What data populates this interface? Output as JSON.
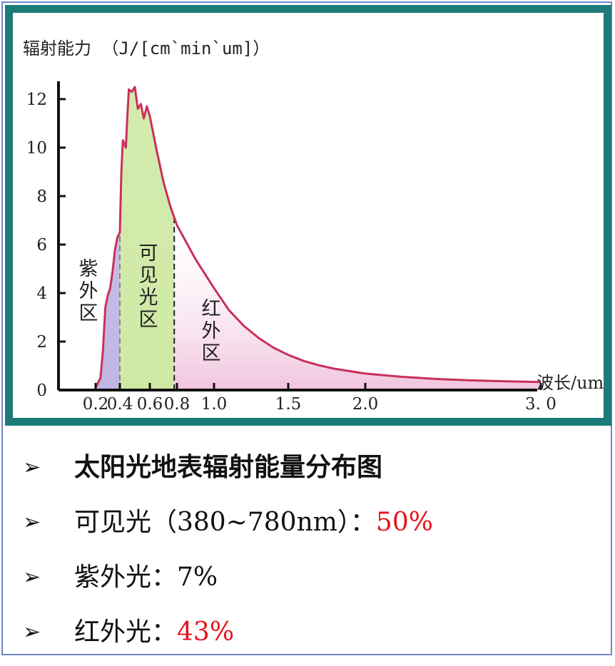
{
  "chart_data": {
    "type": "area",
    "ylabel": "辐射能力 （J/[cm`min`um]）",
    "xlabel": "波长/um",
    "xlim": [
      0,
      3.0
    ],
    "ylim": [
      0,
      12.5
    ],
    "x_ticks": [
      "0.2",
      "0.4",
      "0.6",
      "0.8",
      "1.0",
      "1.5",
      "2.0",
      "3.0"
    ],
    "y_ticks": [
      "0",
      "2",
      "4",
      "6",
      "8",
      "10",
      "12"
    ],
    "y_tick_values": [
      0,
      2,
      4,
      6,
      8,
      10,
      12
    ],
    "x_tick_values": [
      0.2,
      0.4,
      0.6,
      0.8,
      1.0,
      1.5,
      2.0,
      3.0
    ],
    "x_tick_labels_shown": [
      "0.2",
      "0.4",
      "0.6",
      "0.8",
      "1.0",
      "1.5",
      "2.0",
      "3. 0"
    ],
    "regions": [
      {
        "name": "紫外区",
        "x_range": [
          0.2,
          0.4
        ],
        "color": "#bfb6e2"
      },
      {
        "name": "可见光区",
        "x_range": [
          0.4,
          0.78
        ],
        "color": "#cfe9a5"
      },
      {
        "name": "红外区",
        "x_range": [
          0.78,
          3.0
        ],
        "color": "#f1c4de"
      }
    ],
    "curve": {
      "color": "#c8315a",
      "x": [
        0.2,
        0.24,
        0.26,
        0.28,
        0.3,
        0.32,
        0.34,
        0.36,
        0.38,
        0.4,
        0.41,
        0.42,
        0.44,
        0.45,
        0.46,
        0.48,
        0.5,
        0.52,
        0.54,
        0.56,
        0.58,
        0.6,
        0.65,
        0.7,
        0.75,
        0.8,
        0.9,
        1.0,
        1.1,
        1.2,
        1.3,
        1.4,
        1.5,
        1.6,
        1.7,
        1.8,
        1.9,
        2.0,
        2.2,
        2.4,
        2.6,
        2.8,
        3.0
      ],
      "y": [
        0.1,
        0.5,
        1.6,
        3.4,
        3.9,
        4.2,
        4.9,
        5.8,
        6.3,
        6.5,
        9.0,
        10.3,
        10.0,
        11.3,
        12.4,
        12.3,
        12.5,
        11.6,
        11.8,
        11.2,
        11.7,
        11.3,
        9.9,
        8.6,
        7.6,
        6.8,
        5.4,
        4.2,
        3.3,
        2.65,
        2.15,
        1.75,
        1.45,
        1.2,
        1.02,
        0.88,
        0.78,
        0.68,
        0.55,
        0.46,
        0.4,
        0.36,
        0.33
      ]
    }
  },
  "bullets": [
    {
      "text": "太阳光地表辐射能量分布图",
      "highlight": ""
    },
    {
      "text": "可见光（380~780nm）：",
      "highlight": "50%"
    },
    {
      "text": "紫外光：7%",
      "highlight": ""
    },
    {
      "text": "红外光：",
      "highlight": "43%"
    }
  ],
  "bullet_mark": "➢",
  "colors": {
    "panel_border": "#1d7a78",
    "frame_border": "#6f86c8",
    "highlight_red": "#e8121b"
  }
}
